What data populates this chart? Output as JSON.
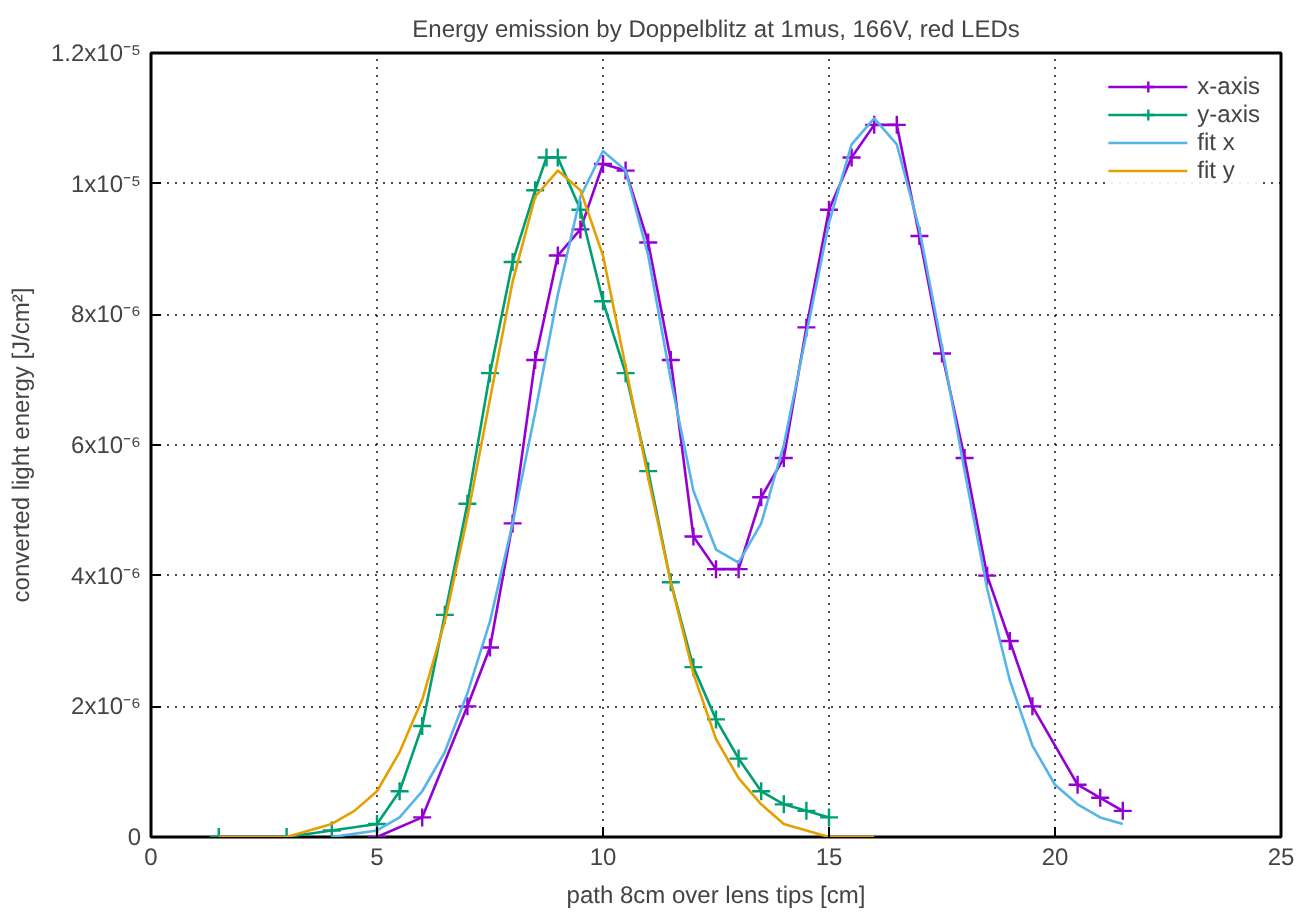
{
  "chart_data": {
    "type": "line",
    "title": "Energy emission by Doppelblitz at 1mus, 166V, red LEDs",
    "xlabel": "path 8cm over lens tips [cm]",
    "ylabel": "converted light energy [J/cm²]",
    "xlim": [
      0,
      25
    ],
    "xticks": [
      0,
      5,
      10,
      15,
      20,
      25
    ],
    "ylim": [
      0,
      1.2e-05
    ],
    "yticks": [
      0,
      {
        "value": 2e-06,
        "label": "2x10⁻⁶"
      },
      {
        "value": 4e-06,
        "label": "4x10⁻⁶"
      },
      {
        "value": 6e-06,
        "label": "6x10⁻⁶"
      },
      {
        "value": 8e-06,
        "label": "8x10⁻⁶"
      },
      {
        "value": 1e-05,
        "label": "1x10⁻⁵"
      },
      {
        "value": 1.2e-05,
        "label": "1.2x10⁻⁵"
      }
    ],
    "grid": true,
    "legend": "top right",
    "line_style": "solid",
    "series": [
      {
        "name": "x-axis",
        "color": "#9400d3",
        "marker": "cross",
        "x": [
          5,
          6,
          7,
          7.5,
          8,
          8.5,
          9,
          9.5,
          10,
          10.5,
          11,
          11.5,
          12,
          12.5,
          13,
          13.5,
          14,
          14.5,
          15,
          15.5,
          16,
          16.5,
          17,
          17.5,
          18,
          18.5,
          19,
          19.5,
          20.5,
          21,
          21.5
        ],
        "values": [
          0,
          3e-07,
          2e-06,
          2.9e-06,
          4.8e-06,
          7.3e-06,
          8.9e-06,
          9.3e-06,
          1.03e-05,
          1.02e-05,
          9.1e-06,
          7.3e-06,
          4.6e-06,
          4.1e-06,
          4.1e-06,
          5.2e-06,
          5.8e-06,
          7.8e-06,
          9.6e-06,
          1.04e-05,
          1.09e-05,
          1.09e-05,
          9.2e-06,
          7.4e-06,
          5.8e-06,
          4e-06,
          3e-06,
          2e-06,
          8e-07,
          6e-07,
          4e-07
        ]
      },
      {
        "name": "y-axis",
        "color": "#009e73",
        "marker": "cross",
        "x": [
          1.5,
          3,
          4,
          5,
          5.5,
          6,
          6.5,
          7,
          7.5,
          8,
          8.5,
          8.75,
          9,
          9.5,
          10,
          10.5,
          11,
          11.5,
          12,
          12.5,
          13,
          13.5,
          14,
          14.5,
          15
        ],
        "values": [
          0,
          0,
          1e-07,
          2e-07,
          7e-07,
          1.7e-06,
          3.4e-06,
          5.1e-06,
          7.1e-06,
          8.8e-06,
          9.9e-06,
          1.04e-05,
          1.04e-05,
          9.6e-06,
          8.2e-06,
          7.1e-06,
          5.6e-06,
          3.9e-06,
          2.6e-06,
          1.8e-06,
          1.2e-06,
          7e-07,
          5e-07,
          4e-07,
          3e-07
        ]
      },
      {
        "name": "fit x",
        "color": "#56b4e9",
        "marker": "none",
        "x": [
          4,
          5,
          5.5,
          6,
          6.5,
          7,
          7.5,
          8,
          8.5,
          9,
          9.5,
          10,
          10.5,
          11,
          11.5,
          12,
          12.5,
          13,
          13.5,
          14,
          14.5,
          15,
          15.5,
          16,
          16.5,
          17,
          17.5,
          18,
          18.5,
          19,
          19.5,
          20,
          20.5,
          21,
          21.5
        ],
        "values": [
          0,
          1e-07,
          3e-07,
          7e-07,
          1.3e-06,
          2.2e-06,
          3.3e-06,
          4.8e-06,
          6.5e-06,
          8.3e-06,
          9.8e-06,
          1.05e-05,
          1.02e-05,
          8.9e-06,
          7e-06,
          5.3e-06,
          4.4e-06,
          4.2e-06,
          4.8e-06,
          6e-06,
          7.7e-06,
          9.4e-06,
          1.06e-05,
          1.1e-05,
          1.06e-05,
          9.3e-06,
          7.5e-06,
          5.6e-06,
          3.8e-06,
          2.4e-06,
          1.4e-06,
          8e-07,
          5e-07,
          3e-07,
          2e-07
        ]
      },
      {
        "name": "fit y",
        "color": "#e69f00",
        "marker": "none",
        "x": [
          1.5,
          3,
          4,
          4.5,
          5,
          5.5,
          6,
          6.5,
          7,
          7.5,
          8,
          8.5,
          9,
          9.5,
          10,
          10.5,
          11,
          11.5,
          12,
          12.5,
          13,
          13.5,
          14,
          15,
          16
        ],
        "values": [
          0,
          0,
          2e-07,
          4e-07,
          7e-07,
          1.3e-06,
          2.1e-06,
          3.3e-06,
          4.9e-06,
          6.7e-06,
          8.5e-06,
          9.8e-06,
          1.02e-05,
          9.9e-06,
          8.9e-06,
          7.2e-06,
          5.5e-06,
          3.9e-06,
          2.5e-06,
          1.5e-06,
          9e-07,
          5e-07,
          2e-07,
          0,
          0
        ]
      }
    ]
  }
}
